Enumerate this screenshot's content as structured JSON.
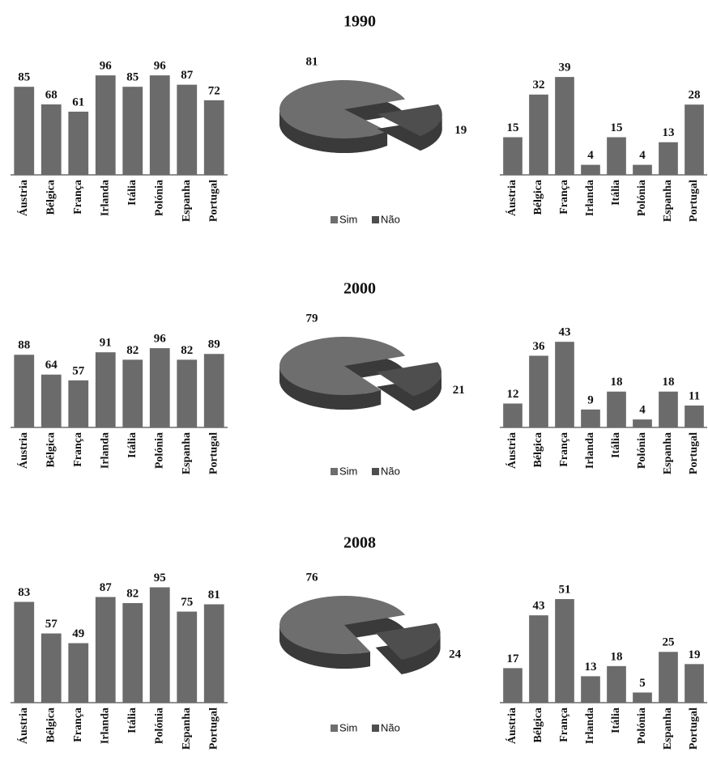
{
  "chart_data": [
    {
      "type": "bar",
      "categories": [
        "Áustria",
        "Bélgica",
        "França",
        "Irlanda",
        "Itália",
        "Polónia",
        "Espanha",
        "Portugal"
      ],
      "values": [
        85,
        68,
        61,
        96,
        85,
        96,
        87,
        72
      ],
      "color": "#6b6b6b",
      "ylim": [
        0,
        100
      ]
    },
    {
      "type": "pie",
      "title": "1990",
      "categories": [
        "Sim",
        "Não"
      ],
      "values": [
        81,
        19
      ],
      "colors": [
        "#6e6e6e",
        "#4e4e4e"
      ]
    },
    {
      "type": "bar",
      "categories": [
        "Áustria",
        "Bélgica",
        "França",
        "Irlanda",
        "Itália",
        "Polónia",
        "Espanha",
        "Portugal"
      ],
      "values": [
        15,
        32,
        39,
        4,
        15,
        4,
        13,
        28
      ],
      "color": "#6b6b6b",
      "ylim": [
        0,
        40
      ]
    },
    {
      "type": "bar",
      "categories": [
        "Áustria",
        "Bélgica",
        "França",
        "Irlanda",
        "Itália",
        "Polónia",
        "Espanha",
        "Portugal"
      ],
      "values": [
        88,
        64,
        57,
        91,
        82,
        96,
        82,
        89
      ],
      "color": "#6b6b6b",
      "ylim": [
        0,
        100
      ]
    },
    {
      "type": "pie",
      "title": "2000",
      "categories": [
        "Sim",
        "Não"
      ],
      "values": [
        79,
        21
      ],
      "colors": [
        "#6e6e6e",
        "#4e4e4e"
      ]
    },
    {
      "type": "bar",
      "categories": [
        "Áustria",
        "Bélgica",
        "França",
        "Irlanda",
        "Itália",
        "Polónia",
        "Espanha",
        "Portugal"
      ],
      "values": [
        12,
        36,
        43,
        9,
        18,
        4,
        18,
        11
      ],
      "color": "#6b6b6b",
      "ylim": [
        0,
        50
      ]
    },
    {
      "type": "bar",
      "categories": [
        "Áustria",
        "Bélgica",
        "França",
        "Irlanda",
        "Itália",
        "Polónia",
        "Espanha",
        "Portugal"
      ],
      "values": [
        83,
        57,
        49,
        87,
        82,
        95,
        75,
        81
      ],
      "color": "#6b6b6b",
      "ylim": [
        0,
        100
      ]
    },
    {
      "type": "pie",
      "title": "2008",
      "categories": [
        "Sim",
        "Não"
      ],
      "values": [
        76,
        24
      ],
      "colors": [
        "#6e6e6e",
        "#4e4e4e"
      ]
    },
    {
      "type": "bar",
      "categories": [
        "Áustria",
        "Bélgica",
        "França",
        "Irlanda",
        "Itália",
        "Polónia",
        "Espanha",
        "Portugal"
      ],
      "values": [
        17,
        43,
        51,
        13,
        18,
        5,
        25,
        19
      ],
      "color": "#6b6b6b",
      "ylim": [
        0,
        55
      ]
    }
  ]
}
